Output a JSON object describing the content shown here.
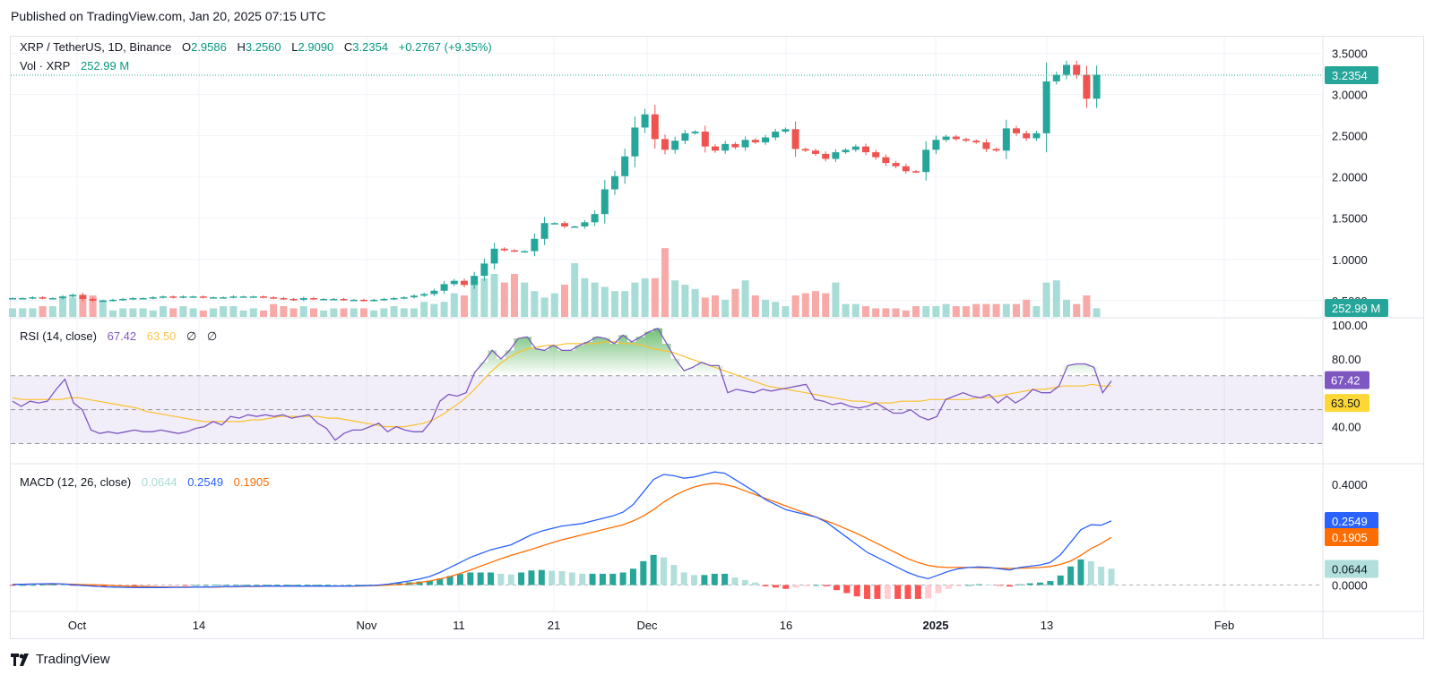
{
  "header": {
    "published": "Published on TradingView.com, Jan 20, 2025 07:15 UTC"
  },
  "legend": {
    "symbol": "XRP / TetherUS, 1D, Binance",
    "o_label": "O",
    "o": "2.9586",
    "h_label": "H",
    "h": "3.2560",
    "l_label": "L",
    "l": "2.9090",
    "c_label": "C",
    "c": "3.2354",
    "change": "+0.2767 (+9.35%)",
    "vol_label": "Vol · XRP",
    "vol": "252.99 M"
  },
  "rsi_legend": {
    "label": "RSI (14, close)",
    "rsi": "67.42",
    "ma": "63.50",
    "n1": "∅",
    "n2": "∅"
  },
  "macd_legend": {
    "label": "MACD (12, 26, close)",
    "hist": "0.0644",
    "macd": "0.2549",
    "signal": "0.1905"
  },
  "footer": {
    "brand": "TradingView"
  },
  "colors": {
    "up": "#26a69a",
    "down": "#ef5350",
    "rsi": "#7e57c2",
    "rsi_ma": "#fdd835",
    "macd": "#2962ff",
    "signal": "#ff6d00"
  },
  "chart_data": [
    {
      "type": "candlestick",
      "title": "XRP / TetherUS, 1D, Binance",
      "ylim": [
        0.4,
        3.55
      ],
      "y_ticks": [
        "3.5000",
        "3.0000",
        "2.5000",
        "2.0000",
        "1.5000",
        "1.0000",
        "0.5000"
      ],
      "x_ticks": [
        "Oct",
        "14",
        "Nov",
        "11",
        "21",
        "Dec",
        "16",
        "2025",
        "13",
        "Feb"
      ],
      "last_price": "3.2354",
      "volume_last": "252.99 M",
      "ohlc_recent": [
        [
          2.9,
          3.06,
          2.85,
          3.04
        ],
        [
          3.05,
          3.07,
          2.95,
          3.01
        ],
        [
          3.01,
          3.01,
          2.91,
          2.93
        ],
        [
          2.93,
          3.07,
          2.9,
          3.05
        ],
        [
          3.05,
          3.12,
          2.96,
          3.1
        ],
        [
          3.1,
          3.12,
          2.89,
          2.95
        ],
        [
          2.95,
          2.95,
          2.84,
          2.89
        ],
        [
          2.89,
          3.0,
          2.82,
          2.97
        ],
        [
          2.97,
          3.0,
          2.61,
          2.65
        ],
        [
          2.65,
          2.83,
          2.35,
          2.78
        ],
        [
          2.78,
          3.06,
          2.72,
          3.03
        ],
        [
          3.03,
          3.2,
          3.0,
          3.17
        ]
      ],
      "close_series": [
        0.53,
        0.53,
        0.54,
        0.53,
        0.53,
        0.55,
        0.57,
        0.52,
        0.5,
        0.5,
        0.51,
        0.52,
        0.53,
        0.53,
        0.54,
        0.55,
        0.54,
        0.55,
        0.55,
        0.54,
        0.54,
        0.54,
        0.55,
        0.55,
        0.55,
        0.54,
        0.53,
        0.52,
        0.51,
        0.53,
        0.52,
        0.52,
        0.52,
        0.51,
        0.51,
        0.5,
        0.51,
        0.52,
        0.53,
        0.54,
        0.56,
        0.58,
        0.62,
        0.7,
        0.74,
        0.69,
        0.8,
        0.95,
        1.13,
        1.11,
        1.1,
        1.1,
        1.25,
        1.44,
        1.44,
        1.4,
        1.4,
        1.45,
        1.55,
        1.85,
        2.01,
        2.25,
        2.6,
        2.76,
        2.46,
        2.33,
        2.44,
        2.53,
        2.55,
        2.37,
        2.32,
        2.4,
        2.36,
        2.45,
        2.42,
        2.48,
        2.55,
        2.58,
        2.34,
        2.32,
        2.28,
        2.22,
        2.3,
        2.33,
        2.37,
        2.3,
        2.24,
        2.17,
        2.13,
        2.07,
        2.06,
        2.33,
        2.45,
        2.49,
        2.46,
        2.44,
        2.42,
        2.34,
        2.32,
        2.59,
        2.53,
        2.47,
        2.53,
        3.16,
        3.24,
        3.36,
        3.24,
        2.95,
        3.24
      ],
      "volume_series": [
        0.4,
        0.4,
        0.4,
        0.5,
        0.5,
        0.9,
        0.9,
        1.0,
        1.0,
        0.8,
        0.3,
        0.4,
        0.4,
        0.4,
        0.3,
        0.5,
        0.4,
        0.5,
        0.4,
        0.3,
        0.4,
        0.5,
        0.5,
        0.3,
        0.4,
        0.3,
        0.6,
        0.5,
        0.4,
        0.5,
        0.4,
        0.3,
        0.4,
        0.4,
        0.4,
        0.4,
        0.3,
        0.4,
        0.5,
        0.4,
        0.4,
        0.7,
        0.6,
        0.7,
        1.1,
        1.0,
        1.6,
        1.8,
        2.0,
        1.6,
        2.0,
        1.6,
        1.2,
        0.9,
        1.1,
        1.5,
        2.5,
        1.8,
        1.6,
        1.4,
        1.2,
        1.2,
        1.6,
        1.8,
        1.8,
        3.2,
        1.7,
        1.5,
        1.3,
        0.9,
        1.0,
        0.8,
        1.3,
        1.7,
        1.0,
        0.8,
        0.7,
        0.5,
        1.0,
        1.1,
        1.2,
        1.1,
        1.6,
        0.6,
        0.6,
        0.5,
        0.4,
        0.4,
        0.4,
        0.3,
        0.5,
        0.5,
        0.5,
        0.6,
        0.5,
        0.5,
        0.6,
        0.6,
        0.6,
        0.6,
        0.6,
        0.8,
        0.5,
        1.6,
        1.7,
        0.8,
        0.6,
        1.0,
        0.4
      ]
    },
    {
      "type": "line",
      "title": "RSI (14, close)",
      "ylim": [
        25,
        100
      ],
      "y_ticks": [
        "100.00",
        "80.00",
        "40.00"
      ],
      "bands": {
        "upper": 70,
        "middle": 50,
        "lower": 30
      },
      "series": [
        {
          "name": "RSI",
          "values": [
            55,
            52,
            55,
            54,
            55,
            62,
            68,
            54,
            50,
            38,
            36,
            37,
            36,
            37,
            38,
            37,
            37,
            38,
            37,
            36,
            37,
            39,
            40,
            43,
            41,
            46,
            45,
            47,
            46,
            47,
            46,
            47,
            45,
            46,
            47,
            42,
            39,
            32,
            36,
            38,
            38,
            40,
            42,
            37,
            40,
            38,
            37,
            37,
            43,
            55,
            59,
            58,
            60,
            72,
            78,
            85,
            80,
            85,
            92,
            93,
            86,
            85,
            88,
            85,
            85,
            88,
            90,
            93,
            92,
            89,
            94,
            90,
            93,
            96,
            98,
            89,
            80,
            73,
            75,
            78,
            76,
            76,
            60,
            62,
            61,
            60,
            62,
            61,
            62,
            63,
            64,
            65,
            56,
            55,
            53,
            54,
            52,
            51,
            52,
            54,
            51,
            48,
            48,
            50,
            46,
            44,
            46,
            56,
            58,
            60,
            58,
            57,
            59,
            54,
            58,
            54,
            57,
            62,
            60,
            60,
            64,
            76,
            77,
            77,
            75,
            60,
            67
          ]
        },
        {
          "name": "MA",
          "values": [
            57,
            56,
            56,
            56,
            56,
            56,
            57,
            57,
            56,
            55,
            54,
            53,
            52,
            51,
            49,
            48,
            47,
            46,
            45,
            44,
            43,
            43,
            43,
            43,
            43,
            44,
            44,
            45,
            46,
            46,
            46,
            46,
            46,
            45,
            45,
            44,
            43,
            42,
            41,
            40,
            40,
            40,
            41,
            42,
            44,
            47,
            51,
            55,
            60,
            66,
            72,
            77,
            81,
            84,
            86,
            87,
            88,
            88,
            89,
            89,
            89,
            89,
            90,
            90,
            89,
            89,
            88,
            86,
            85,
            84,
            82,
            80,
            78,
            76,
            74,
            72,
            70,
            68,
            66,
            64,
            63,
            62,
            61,
            60,
            59,
            58,
            57,
            56,
            55,
            55,
            54,
            54,
            54,
            55,
            55,
            55,
            56,
            56,
            56,
            56,
            56,
            57,
            57,
            58,
            59,
            60,
            61,
            62,
            62,
            63,
            64,
            64,
            64,
            65,
            64,
            64
          ]
        }
      ]
    },
    {
      "type": "line",
      "title": "MACD (12, 26, close)",
      "ylim": [
        -0.08,
        0.44
      ],
      "y_ticks": [
        "0.4000",
        "0.0000"
      ],
      "series": [
        {
          "name": "MACD",
          "values": [
            0.002,
            0.003,
            0.004,
            0.005,
            0.006,
            0.004,
            0.001,
            -0.002,
            -0.005,
            -0.007,
            -0.008,
            -0.009,
            -0.01,
            -0.01,
            -0.01,
            -0.01,
            -0.009,
            -0.009,
            -0.008,
            -0.008,
            -0.007,
            -0.006,
            -0.006,
            -0.005,
            -0.005,
            -0.004,
            -0.004,
            -0.004,
            -0.004,
            -0.004,
            -0.004,
            -0.004,
            -0.004,
            -0.004,
            -0.003,
            -0.002,
            0.0,
            0.004,
            0.01,
            0.016,
            0.024,
            0.034,
            0.05,
            0.07,
            0.09,
            0.11,
            0.125,
            0.14,
            0.15,
            0.16,
            0.18,
            0.2,
            0.215,
            0.225,
            0.235,
            0.24,
            0.245,
            0.255,
            0.265,
            0.275,
            0.29,
            0.32,
            0.37,
            0.42,
            0.44,
            0.435,
            0.425,
            0.43,
            0.44,
            0.45,
            0.445,
            0.42,
            0.395,
            0.37,
            0.34,
            0.32,
            0.3,
            0.29,
            0.28,
            0.27,
            0.25,
            0.22,
            0.19,
            0.16,
            0.13,
            0.11,
            0.09,
            0.07,
            0.05,
            0.035,
            0.025,
            0.04,
            0.055,
            0.065,
            0.07,
            0.072,
            0.07,
            0.065,
            0.06,
            0.07,
            0.075,
            0.08,
            0.09,
            0.12,
            0.17,
            0.22,
            0.24,
            0.238,
            0.255
          ]
        },
        {
          "name": "Signal",
          "values": [
            0.003,
            0.003,
            0.004,
            0.004,
            0.004,
            0.004,
            0.003,
            0.002,
            0.001,
            0.0,
            -0.002,
            -0.004,
            -0.005,
            -0.006,
            -0.007,
            -0.008,
            -0.008,
            -0.008,
            -0.008,
            -0.008,
            -0.008,
            -0.007,
            -0.007,
            -0.006,
            -0.006,
            -0.005,
            -0.005,
            -0.005,
            -0.005,
            -0.005,
            -0.005,
            -0.005,
            -0.004,
            -0.004,
            -0.004,
            -0.003,
            -0.002,
            0.0,
            0.002,
            0.005,
            0.01,
            0.016,
            0.024,
            0.034,
            0.046,
            0.06,
            0.075,
            0.09,
            0.105,
            0.118,
            0.13,
            0.142,
            0.155,
            0.168,
            0.18,
            0.19,
            0.2,
            0.21,
            0.22,
            0.23,
            0.24,
            0.255,
            0.275,
            0.3,
            0.33,
            0.355,
            0.375,
            0.39,
            0.4,
            0.405,
            0.4,
            0.39,
            0.375,
            0.36,
            0.345,
            0.33,
            0.315,
            0.3,
            0.285,
            0.27,
            0.255,
            0.24,
            0.222,
            0.205,
            0.185,
            0.165,
            0.145,
            0.125,
            0.105,
            0.09,
            0.078,
            0.072,
            0.07,
            0.07,
            0.07,
            0.069,
            0.068,
            0.067,
            0.066,
            0.067,
            0.068,
            0.07,
            0.074,
            0.082,
            0.096,
            0.118,
            0.145,
            0.165,
            0.19
          ]
        }
      ],
      "histogram_last": "0.0644"
    }
  ]
}
